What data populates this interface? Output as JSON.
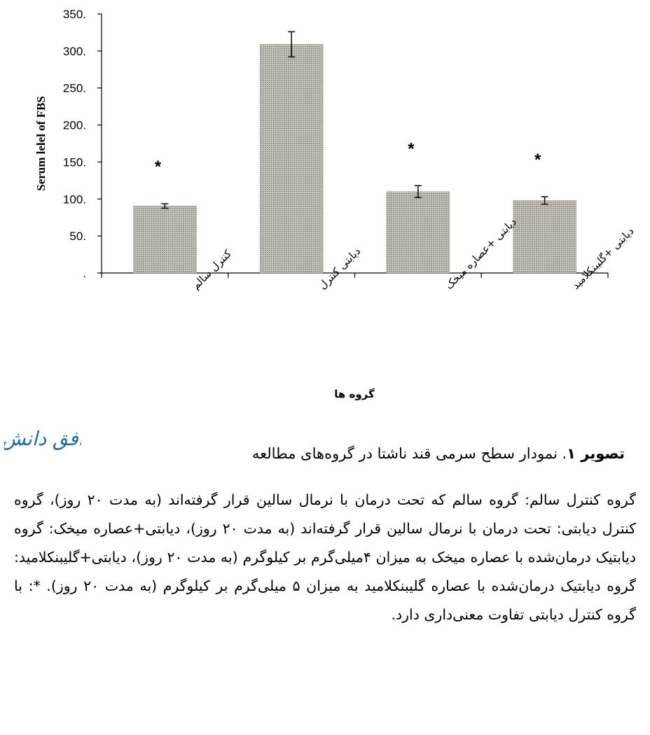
{
  "chart_data": {
    "type": "bar",
    "categories": [
      "کنترل سالم",
      "دیابتی کنترل",
      "دیابتی +عصاره میخک",
      "دیابتی +گلیبنکلامید"
    ],
    "values": [
      90.5,
      309,
      110,
      98
    ],
    "errors": [
      3,
      17,
      8,
      5
    ],
    "significance": [
      "*",
      "",
      "*",
      "*"
    ],
    "ylabel": "Serum lelel of FBS",
    "xlabel": "گروه ها",
    "ylim": [
      0,
      350
    ],
    "yticks": [
      {
        "value": 0,
        "label": "."
      },
      {
        "value": 50,
        "label": "50."
      },
      {
        "value": 100,
        "label": "100."
      },
      {
        "value": 150,
        "label": "150."
      },
      {
        "value": 200,
        "label": "200."
      },
      {
        "value": 250,
        "label": "250."
      },
      {
        "value": 300,
        "label": "300."
      },
      {
        "value": 350,
        "label": "350."
      }
    ],
    "grid": false,
    "colors": {
      "bar_fill": "#b5b2a8",
      "bar_dot": "#7a776e",
      "axis": "#000000"
    }
  },
  "logo_text": "افق دانش",
  "caption": {
    "label": "تصویر ۱",
    "text": ". نمودار سطح سرمی قند ناشتا در گروه‌های مطالعه"
  },
  "note": "گروه کنترل سالم: گروه سالم که تحت درمان با نرمال سالین قرار گرفته‌اند (به مدت ۲۰ روز)، گروه کنترل دیابتی: تحت درمان با نرمال سالین قرار گرفته‌اند (به مدت ۲۰ روز)، دیابتی+عصاره میخک: گروه دیابتیک درمان‌شده با عصاره میخک به میزان ۴میلی‌گرم بر کیلوگرم (به مدت ۲۰ روز)، دیابتی+گلیبنکلامید: گروه دیابتیک درمان‌شده با عصاره گلیبنکلامید به میزان ۵ میلی‌گرم بر کیلوگرم (به مدت ۲۰ روز). *: با گروه کنترل دیابتی تفاوت معنی‌داری دارد."
}
